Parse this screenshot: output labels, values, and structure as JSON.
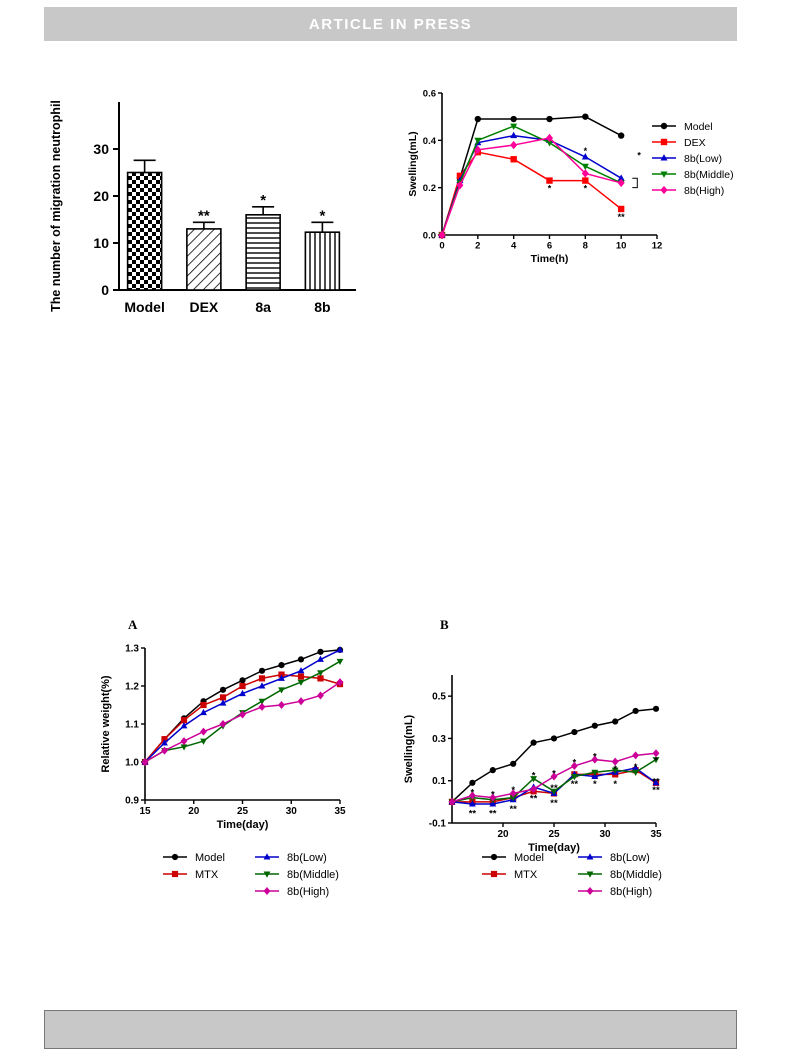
{
  "header": {
    "banner": "ARTICLE IN PRESS"
  },
  "footer": {
    "banner": ""
  },
  "chart_data": [
    {
      "id": "neutrophil",
      "type": "bar",
      "ylabel": "The number of migration neutrophil",
      "ylim": [
        0,
        40
      ],
      "yticks": [
        0,
        10,
        20,
        30
      ],
      "categories": [
        "Model",
        "DEX",
        "8a",
        "8b"
      ],
      "values": [
        25,
        13,
        16,
        12.3
      ],
      "errors": [
        2.6,
        1.4,
        1.7,
        2.1
      ],
      "significance": [
        "",
        "**",
        "*",
        "*"
      ]
    },
    {
      "id": "swelling-hours",
      "type": "line",
      "xlabel": "Time(h)",
      "ylabel": "Swelling(mL)",
      "xlim": [
        0,
        12
      ],
      "ylim": [
        0,
        0.6
      ],
      "xticks": [
        0,
        2,
        4,
        6,
        8,
        10,
        12
      ],
      "yticks": [
        0,
        0.2,
        0.4,
        0.6
      ],
      "ytick_labels": [
        "0.0",
        "0.2",
        "0.4",
        "0.6"
      ],
      "legend": "right",
      "series": [
        {
          "name": "Model",
          "color": "#000000",
          "marker": "circle",
          "x": [
            0,
            1,
            2,
            4,
            6,
            8,
            10
          ],
          "y": [
            0,
            0.24,
            0.49,
            0.49,
            0.49,
            0.5,
            0.42
          ]
        },
        {
          "name": "DEX",
          "color": "#ff0000",
          "marker": "square",
          "x": [
            0,
            1,
            2,
            4,
            6,
            8,
            10
          ],
          "y": [
            0,
            0.25,
            0.35,
            0.32,
            0.23,
            0.23,
            0.11
          ]
        },
        {
          "name": "8b(Low)",
          "color": "#0000cc",
          "marker": "triangle-up",
          "x": [
            0,
            1,
            2,
            4,
            6,
            8,
            10
          ],
          "y": [
            0,
            0.23,
            0.39,
            0.42,
            0.4,
            0.33,
            0.24
          ]
        },
        {
          "name": "8b(Middle)",
          "color": "#008000",
          "marker": "triangle-down",
          "x": [
            0,
            1,
            2,
            4,
            6,
            8,
            10
          ],
          "y": [
            0,
            0.22,
            0.4,
            0.46,
            0.39,
            0.29,
            0.22
          ]
        },
        {
          "name": "8b(High)",
          "color": "#ff0099",
          "marker": "diamond",
          "x": [
            0,
            1,
            2,
            4,
            6,
            8,
            10
          ],
          "y": [
            0,
            0.21,
            0.36,
            0.38,
            0.41,
            0.26,
            0.22
          ]
        }
      ],
      "annotations": [
        {
          "x": 6,
          "y": 0.2,
          "text": "*"
        },
        {
          "x": 8,
          "y": 0.2,
          "text": "*"
        },
        {
          "x": 8,
          "y": 0.36,
          "text": "*"
        },
        {
          "x": 10,
          "y": 0.08,
          "text": "**"
        },
        {
          "x": 11,
          "y": 0.34,
          "text": "*"
        }
      ]
    },
    {
      "id": "relative-weight",
      "panel": "A",
      "type": "line",
      "xlabel": "Time(day)",
      "ylabel": "Relative weight(%)",
      "xlim": [
        15,
        35
      ],
      "ylim": [
        0.9,
        1.3
      ],
      "xticks": [
        15,
        20,
        25,
        30,
        35
      ],
      "yticks": [
        0.9,
        1.0,
        1.1,
        1.2,
        1.3
      ],
      "ytick_labels": [
        "0.9",
        "1.0",
        "1.1",
        "1.2",
        "1.3"
      ],
      "legend": "bottom",
      "series": [
        {
          "name": "Model",
          "color": "#000000",
          "marker": "circle",
          "x": [
            15,
            17,
            19,
            21,
            23,
            25,
            27,
            29,
            31,
            33,
            35
          ],
          "y": [
            1.0,
            1.06,
            1.115,
            1.16,
            1.19,
            1.215,
            1.24,
            1.255,
            1.27,
            1.29,
            1.295
          ]
        },
        {
          "name": "MTX",
          "color": "#cc0000",
          "marker": "square",
          "x": [
            15,
            17,
            19,
            21,
            23,
            25,
            27,
            29,
            31,
            33,
            35
          ],
          "y": [
            1.0,
            1.06,
            1.11,
            1.15,
            1.17,
            1.2,
            1.22,
            1.23,
            1.225,
            1.22,
            1.205
          ]
        },
        {
          "name": "8b(Low)",
          "color": "#0000cc",
          "marker": "triangle-up",
          "x": [
            15,
            17,
            19,
            21,
            23,
            25,
            27,
            29,
            31,
            33,
            35
          ],
          "y": [
            1.0,
            1.05,
            1.095,
            1.13,
            1.155,
            1.18,
            1.2,
            1.22,
            1.24,
            1.27,
            1.295
          ]
        },
        {
          "name": "8b(Middle)",
          "color": "#006600",
          "marker": "triangle-down",
          "x": [
            15,
            17,
            19,
            21,
            23,
            25,
            27,
            29,
            31,
            33,
            35
          ],
          "y": [
            1.0,
            1.03,
            1.04,
            1.055,
            1.095,
            1.13,
            1.16,
            1.19,
            1.21,
            1.235,
            1.265
          ]
        },
        {
          "name": "8b(High)",
          "color": "#cc0099",
          "marker": "diamond",
          "x": [
            15,
            17,
            19,
            21,
            23,
            25,
            27,
            29,
            31,
            33,
            35
          ],
          "y": [
            1.0,
            1.03,
            1.055,
            1.08,
            1.1,
            1.125,
            1.145,
            1.15,
            1.16,
            1.175,
            1.21
          ]
        }
      ]
    },
    {
      "id": "swelling-days",
      "panel": "B",
      "type": "line",
      "xlabel": "Time(day)",
      "ylabel": "Swelling(mL)",
      "xlim": [
        15,
        35
      ],
      "ylim": [
        -0.1,
        0.6
      ],
      "xticks": [
        20,
        25,
        30,
        35
      ],
      "yticks": [
        -0.1,
        0.1,
        0.3,
        0.5
      ],
      "ytick_labels": [
        "-0.1",
        "0.1",
        "0.3",
        "0.5"
      ],
      "legend": "bottom",
      "series": [
        {
          "name": "Model",
          "color": "#000000",
          "marker": "circle",
          "x": [
            15,
            17,
            19,
            21,
            23,
            25,
            27,
            29,
            31,
            33,
            35
          ],
          "y": [
            0,
            0.09,
            0.15,
            0.18,
            0.28,
            0.3,
            0.33,
            0.36,
            0.38,
            0.43,
            0.44
          ]
        },
        {
          "name": "MTX",
          "color": "#cc0000",
          "marker": "square",
          "x": [
            15,
            17,
            19,
            21,
            23,
            25,
            27,
            29,
            31,
            33,
            35
          ],
          "y": [
            0,
            0.0,
            0.0,
            0.02,
            0.05,
            0.04,
            0.13,
            0.13,
            0.13,
            0.15,
            0.09
          ]
        },
        {
          "name": "8b(Low)",
          "color": "#0000cc",
          "marker": "triangle-up",
          "x": [
            15,
            17,
            19,
            21,
            23,
            25,
            27,
            29,
            31,
            33,
            35
          ],
          "y": [
            0,
            -0.01,
            -0.01,
            0.01,
            0.07,
            0.04,
            0.13,
            0.12,
            0.14,
            0.16,
            0.09
          ]
        },
        {
          "name": "8b(Middle)",
          "color": "#006600",
          "marker": "triangle-down",
          "x": [
            15,
            17,
            19,
            21,
            23,
            25,
            27,
            29,
            31,
            33,
            35
          ],
          "y": [
            0,
            0.02,
            0.01,
            0.02,
            0.11,
            0.05,
            0.12,
            0.14,
            0.15,
            0.14,
            0.2
          ]
        },
        {
          "name": "8b(High)",
          "color": "#cc0099",
          "marker": "diamond",
          "x": [
            15,
            17,
            19,
            21,
            23,
            25,
            27,
            29,
            31,
            33,
            35
          ],
          "y": [
            0,
            0.03,
            0.02,
            0.04,
            0.06,
            0.12,
            0.17,
            0.2,
            0.19,
            0.22,
            0.23
          ]
        }
      ],
      "annotations": [
        {
          "x": 17,
          "y": 0.05,
          "text": "*"
        },
        {
          "x": 19,
          "y": 0.04,
          "text": "*"
        },
        {
          "x": 21,
          "y": 0.06,
          "text": "*"
        },
        {
          "x": 23,
          "y": 0.13,
          "text": "*"
        },
        {
          "x": 25,
          "y": 0.14,
          "text": "*"
        },
        {
          "x": 27,
          "y": 0.19,
          "text": "*"
        },
        {
          "x": 29,
          "y": 0.22,
          "text": "*"
        },
        {
          "x": 31,
          "y": 0.16,
          "text": "*"
        },
        {
          "x": 33,
          "y": 0.17,
          "text": "*"
        },
        {
          "x": 35,
          "y": 0.2,
          "text": "*"
        },
        {
          "x": 17,
          "y": -0.05,
          "text": "**"
        },
        {
          "x": 19,
          "y": -0.05,
          "text": "**"
        },
        {
          "x": 21,
          "y": -0.03,
          "text": "**"
        },
        {
          "x": 23,
          "y": 0.02,
          "text": "**"
        },
        {
          "x": 25,
          "y": 0.07,
          "text": "**"
        },
        {
          "x": 25,
          "y": 0.0,
          "text": "**"
        },
        {
          "x": 27,
          "y": 0.09,
          "text": "**"
        },
        {
          "x": 29,
          "y": 0.09,
          "text": "*"
        },
        {
          "x": 31,
          "y": 0.09,
          "text": "*"
        },
        {
          "x": 35,
          "y": 0.1,
          "text": "**"
        },
        {
          "x": 35,
          "y": 0.06,
          "text": "**"
        }
      ]
    }
  ]
}
